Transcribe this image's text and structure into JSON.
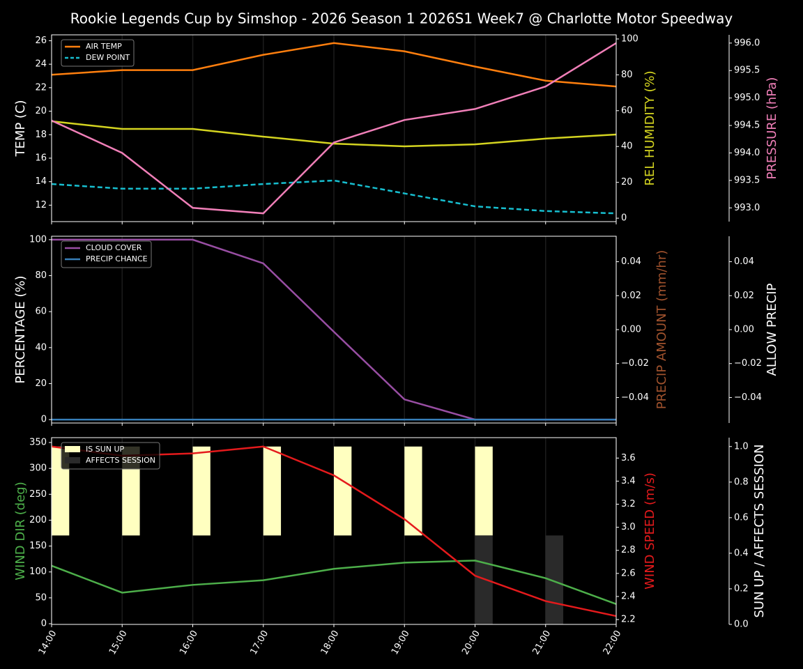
{
  "chart_data": [
    {
      "type": "line",
      "title": "Rookie Legends Cup by Simshop - 2026 Season 1 2026S1 Week7 @ Charlotte Motor Speedway",
      "grid": true,
      "legend": "upper left",
      "ylabel": "TEMP (C)",
      "ylim": [
        10.6,
        26.5
      ],
      "yticks": [
        12,
        14,
        16,
        18,
        20,
        22,
        24,
        26
      ],
      "y2label": "REL HUMIDITY (%)",
      "y2label_color": "#d4d420",
      "y2lim": [
        -1.9,
        102.3
      ],
      "y2ticks": [
        0,
        20,
        40,
        60,
        80,
        100
      ],
      "y3label": "PRESSURE (hPa)",
      "y3label_color": "#f07fb8",
      "y3lim": [
        992.75,
        996.15
      ],
      "y3ticks": [
        {
          "value": 993,
          "label": "993.0"
        },
        993.5,
        {
          "value": 994,
          "label": "994.0"
        },
        994.5,
        {
          "value": 995,
          "label": "995.0"
        },
        995.5,
        {
          "value": 996,
          "label": "996.0"
        }
      ],
      "series": [
        {
          "name": "AIR TEMP",
          "color": "#ff7f0e",
          "values": [
            23.1,
            23.5,
            23.5,
            24.8,
            25.8,
            25.1,
            23.8,
            22.6,
            22.1
          ]
        },
        {
          "name": "DEW POINT",
          "color": "#17becf",
          "dash": true,
          "values": [
            13.8,
            13.4,
            13.4,
            13.8,
            14.1,
            13.0,
            11.9,
            11.5,
            11.3
          ]
        },
        {
          "color": "#d4d420",
          "axis": "y2",
          "values": [
            54.1,
            49.8,
            49.8,
            45.5,
            41.6,
            40.1,
            41.2,
            44.4,
            46.7
          ]
        },
        {
          "color": "#f07fb8",
          "axis": "y3",
          "values": [
            994.59,
            994.0,
            993.0,
            992.9,
            994.19,
            994.6,
            994.8,
            995.21,
            996.0
          ]
        }
      ]
    },
    {
      "type": "line",
      "grid": true,
      "legend": "upper left",
      "ylabel": "PERCENTAGE (%)",
      "ylim": [
        -1.9,
        101.9
      ],
      "yticks": [
        0,
        20,
        40,
        60,
        80,
        100
      ],
      "y2label": "PRECIP AMOUNT (mm/hr)",
      "y2label_color": "#a0522d",
      "y2lim": [
        -0.055,
        0.055
      ],
      "y2ticks": [
        {
          "value": -0.04,
          "label": "−0.04"
        },
        {
          "value": -0.02,
          "label": "−0.02"
        },
        {
          "value": 0,
          "label": "0.00"
        },
        0.02,
        0.04
      ],
      "y3label": "ALLOW PRECIP",
      "y3lim": [
        -0.055,
        0.055
      ],
      "y3ticks": [
        {
          "value": -0.04,
          "label": "−0.04"
        },
        {
          "value": -0.02,
          "label": "−0.02"
        },
        {
          "value": 0,
          "label": "0.00"
        },
        0.02,
        0.04
      ],
      "series": [
        {
          "name": "CLOUD COVER",
          "color": "#984ea3",
          "values": [
            100,
            100,
            100,
            86.8,
            48.8,
            11.2,
            0,
            0,
            0
          ]
        },
        {
          "name": "PRECIP CHANCE",
          "color": "#377eb8",
          "values": [
            0,
            0,
            0,
            0,
            0,
            0,
            0,
            0,
            0
          ]
        }
      ]
    },
    {
      "type": "combo",
      "grid": true,
      "legend": "upper left",
      "categories": [
        "14:00",
        "15:00",
        "16:00",
        "17:00",
        "18:00",
        "19:00",
        "20:00",
        "21:00",
        "22:00"
      ],
      "ylabel": "WIND DIR (deg)",
      "ylabel_color": "#4daf4a",
      "ylim": [
        -1.3,
        359.4
      ],
      "yticks": [
        0,
        50,
        100,
        150,
        200,
        250,
        300,
        350
      ],
      "y2label": "WIND SPEED (m/s)",
      "y2label_color": "#e41a1c",
      "y2lim": [
        2.158,
        3.777
      ],
      "y2ticks": [
        2.2,
        2.4,
        2.6,
        2.8,
        {
          "value": 3,
          "label": "3.0"
        },
        3.2,
        3.4,
        3.6
      ],
      "y3label": "SUN UP / AFFECTS SESSION",
      "y3lim": [
        0,
        1.05
      ],
      "y3ticks": [
        {
          "value": 0,
          "label": "0.0"
        },
        0.2,
        0.4,
        0.6,
        0.8,
        {
          "value": 1,
          "label": "1.0"
        }
      ],
      "series": [
        {
          "name": "IS SUN UP",
          "type": "bar",
          "axis": "y3",
          "base": 0.5,
          "color": "#ffffc0",
          "values": [
            1,
            1,
            1,
            1,
            1,
            1,
            1,
            0.5,
            0.5
          ]
        },
        {
          "name": "AFFECTS SESSION",
          "type": "bar",
          "axis": "y3",
          "base": 0,
          "color": "#2a2a2a",
          "values": [
            0,
            0,
            0,
            0,
            0,
            0,
            0.5,
            0.5,
            0
          ]
        },
        {
          "type": "line",
          "color": "#4daf4a",
          "values": [
            112,
            60,
            75,
            84,
            106,
            118,
            122,
            88,
            38
          ]
        },
        {
          "type": "line",
          "color": "#e41a1c",
          "axis": "y2",
          "values": [
            3.7,
            3.62,
            3.64,
            3.7,
            3.45,
            3.07,
            2.58,
            2.36,
            2.23
          ]
        }
      ]
    }
  ]
}
